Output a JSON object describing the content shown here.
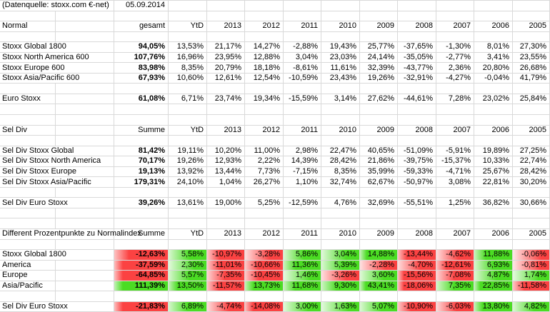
{
  "meta": {
    "source": "(Datenquelle: stoxx.com €-net)",
    "date": "05.09.2014"
  },
  "year_headers": [
    "YtD",
    "2013",
    "2012",
    "2011",
    "2010",
    "2009",
    "2008",
    "2007",
    "2006",
    "2005"
  ],
  "colors": {
    "positive": "#4bdc23",
    "negative": "#fb4242",
    "gridline": "#d9d9d9",
    "text": "#000000"
  },
  "sections": [
    {
      "title": "Normal",
      "total_label": "gesamt",
      "colored": false,
      "rows": [
        {
          "label": "Stoxx Global 1800",
          "total": "94,05%",
          "values": [
            "13,53%",
            "21,17%",
            "14,27%",
            "-2,88%",
            "19,43%",
            "25,77%",
            "-37,65%",
            "-1,30%",
            "8,01%",
            "27,30%"
          ]
        },
        {
          "label": "Stoxx North America 600",
          "total": "107,76%",
          "values": [
            "16,96%",
            "23,95%",
            "12,88%",
            "3,04%",
            "23,03%",
            "24,14%",
            "-35,05%",
            "-2,77%",
            "3,41%",
            "23,55%"
          ]
        },
        {
          "label": "Stoxx Europe 600",
          "total": "83,98%",
          "values": [
            "8,35%",
            "20,79%",
            "18,18%",
            "-8,61%",
            "11,61%",
            "32,39%",
            "-43,77%",
            "2,36%",
            "20,80%",
            "26,68%"
          ]
        },
        {
          "label": "Stoxx Asia/Pacific 600",
          "total": "67,93%",
          "values": [
            "10,60%",
            "12,61%",
            "12,54%",
            "-10,59%",
            "23,43%",
            "19,26%",
            "-32,91%",
            "-4,27%",
            "-0,04%",
            "41,79%"
          ]
        },
        {
          "label": "Euro Stoxx",
          "gap_before": true,
          "total": "61,08%",
          "values": [
            "6,71%",
            "23,74%",
            "19,34%",
            "-15,59%",
            "3,14%",
            "27,62%",
            "-44,61%",
            "7,28%",
            "23,02%",
            "25,84%"
          ]
        }
      ]
    },
    {
      "title": "Sel Div",
      "total_label": "Summe",
      "colored": false,
      "rows": [
        {
          "label": "Sel Div Stoxx Global",
          "total": "81,42%",
          "values": [
            "19,11%",
            "10,20%",
            "11,00%",
            "2,98%",
            "22,47%",
            "40,65%",
            "-51,09%",
            "-5,91%",
            "19,89%",
            "27,25%"
          ]
        },
        {
          "label": "Sel Div Stoxx North America",
          "total": "70,17%",
          "values": [
            "19,26%",
            "12,93%",
            "2,22%",
            "14,39%",
            "28,42%",
            "21,86%",
            "-39,75%",
            "-15,37%",
            "10,33%",
            "22,74%"
          ]
        },
        {
          "label": "Sel Div Stoxx Europe",
          "total": "19,13%",
          "values": [
            "13,92%",
            "13,44%",
            "7,73%",
            "-7,15%",
            "8,35%",
            "35,99%",
            "-59,33%",
            "-4,71%",
            "25,67%",
            "28,42%"
          ]
        },
        {
          "label": "Sel Div Stoxx Asia/Pacific",
          "total": "179,31%",
          "values": [
            "24,10%",
            "1,04%",
            "26,27%",
            "1,10%",
            "32,74%",
            "62,67%",
            "-50,97%",
            "3,08%",
            "22,81%",
            "30,20%"
          ]
        },
        {
          "label": "Sel Div Euro Stoxx",
          "gap_before": true,
          "total": "39,26%",
          "values": [
            "13,61%",
            "19,00%",
            "5,25%",
            "-12,59%",
            "4,76%",
            "32,69%",
            "-55,51%",
            "1,25%",
            "36,82%",
            "30,66%"
          ]
        }
      ]
    },
    {
      "title": "Different Prozentpunkte zu Normalindex",
      "total_label": "Summe",
      "colored": true,
      "rows": [
        {
          "label": "Stoxx Global 1800",
          "total": "-12,63%",
          "values": [
            "5,58%",
            "-10,97%",
            "-3,28%",
            "5,86%",
            "3,04%",
            "14,88%",
            "-13,44%",
            "-4,62%",
            "11,88%",
            "-0,06%"
          ]
        },
        {
          "label": "America",
          "total": "-37,59%",
          "values": [
            "2,30%",
            "-11,01%",
            "-10,66%",
            "11,36%",
            "5,39%",
            "-2,28%",
            "-4,70%",
            "-12,61%",
            "6,93%",
            "-0,81%"
          ]
        },
        {
          "label": "Europe",
          "total": "-64,85%",
          "values": [
            "5,57%",
            "-7,35%",
            "-10,45%",
            "1,46%",
            "-3,26%",
            "3,60%",
            "-15,56%",
            "-7,08%",
            "4,87%",
            "1,74%"
          ]
        },
        {
          "label": "Asia/Pacific",
          "total": "111,39%",
          "values": [
            "13,50%",
            "-11,57%",
            "13,73%",
            "11,68%",
            "9,30%",
            "43,41%",
            "-18,06%",
            "7,35%",
            "22,85%",
            "-11,58%"
          ]
        },
        {
          "label": "Sel Div Euro Stoxx",
          "gap_before": true,
          "total": "-21,83%",
          "values": [
            "6,89%",
            "-4,74%",
            "-14,08%",
            "3,00%",
            "1,63%",
            "5,07%",
            "-10,90%",
            "-6,03%",
            "13,80%",
            "4,82%"
          ]
        }
      ]
    }
  ]
}
